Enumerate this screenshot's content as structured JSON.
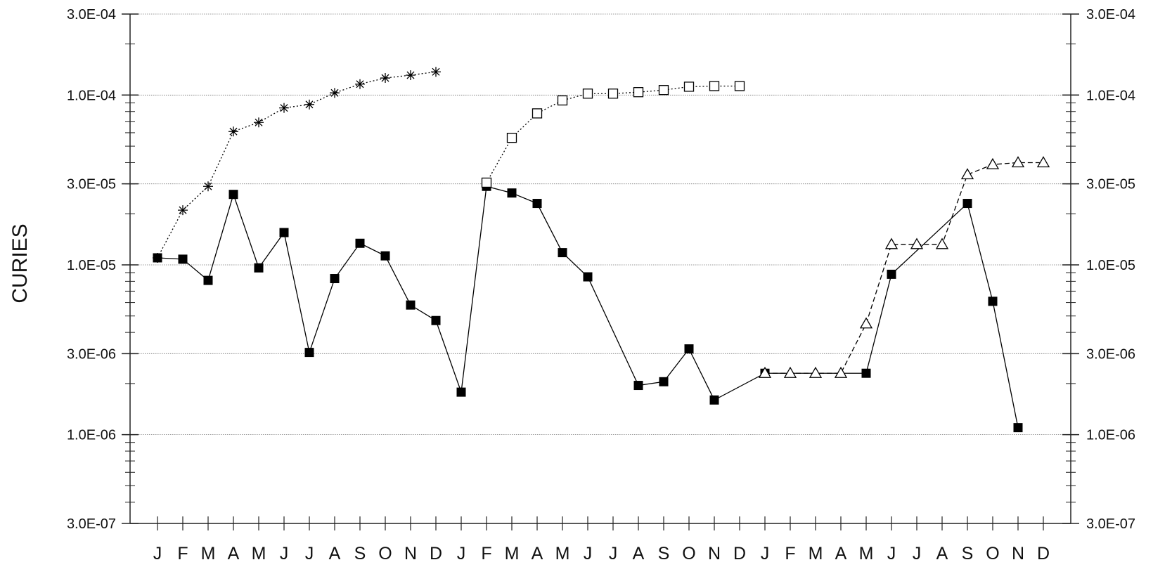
{
  "chart_data": {
    "type": "line",
    "title": "",
    "xlabel": "",
    "ylabel": "CURIES",
    "y_scale": "log",
    "ylim": [
      3e-07,
      0.0003
    ],
    "y_ticks": [
      {
        "value": 0.0003,
        "label": "3.0E-04"
      },
      {
        "value": 0.0001,
        "label": "1.0E-04"
      },
      {
        "value": 3e-05,
        "label": "3.0E-05"
      },
      {
        "value": 1e-05,
        "label": "1.0E-05"
      },
      {
        "value": 3e-06,
        "label": "3.0E-06"
      },
      {
        "value": 1e-06,
        "label": "1.0E-06"
      },
      {
        "value": 3e-07,
        "label": "3.0E-07"
      }
    ],
    "grid": true,
    "categories": [
      "J",
      "F",
      "M",
      "A",
      "M",
      "J",
      "J",
      "A",
      "S",
      "O",
      "N",
      "D",
      "J",
      "F",
      "M",
      "A",
      "M",
      "J",
      "J",
      "A",
      "S",
      "O",
      "N",
      "D",
      "J",
      "F",
      "M",
      "A",
      "M",
      "J",
      "J",
      "A",
      "S",
      "O",
      "N",
      "D"
    ],
    "series": [
      {
        "marker": "filled-square",
        "line": "solid",
        "color": "#000000",
        "values": [
          1.1e-05,
          1.08e-05,
          8.1e-06,
          2.6e-05,
          9.6e-06,
          1.55e-05,
          3.05e-06,
          8.3e-06,
          1.34e-05,
          1.13e-05,
          5.8e-06,
          4.7e-06,
          1.78e-06,
          2.9e-05,
          2.65e-05,
          2.3e-05,
          1.18e-05,
          8.5e-06,
          null,
          1.95e-06,
          2.05e-06,
          3.2e-06,
          1.6e-06,
          null,
          2.3e-06,
          null,
          null,
          null,
          2.3e-06,
          8.8e-06,
          null,
          null,
          2.3e-05,
          6.1e-06,
          1.1e-06,
          null
        ]
      },
      {
        "marker": "asterisk",
        "line": "dotted",
        "color": "#000000",
        "values": [
          1.1e-05,
          2.1e-05,
          2.9e-05,
          6.1e-05,
          6.9e-05,
          8.4e-05,
          8.8e-05,
          0.000103,
          0.000116,
          0.000126,
          0.000131,
          0.000137,
          null,
          null,
          null,
          null,
          null,
          null,
          null,
          null,
          null,
          null,
          null,
          null,
          null,
          null,
          null,
          null,
          null,
          null,
          null,
          null,
          null,
          null,
          null,
          null
        ]
      },
      {
        "marker": "open-square",
        "line": "dotted",
        "color": "#000000",
        "values": [
          null,
          null,
          null,
          null,
          null,
          null,
          null,
          null,
          null,
          null,
          null,
          null,
          null,
          3.05e-05,
          5.6e-05,
          7.8e-05,
          9.3e-05,
          0.000102,
          0.000102,
          0.000104,
          0.000107,
          0.000112,
          0.000113,
          0.000113,
          null,
          null,
          null,
          null,
          null,
          null,
          null,
          null,
          null,
          null,
          null,
          null
        ]
      },
      {
        "marker": "open-triangle",
        "line": "dashed",
        "color": "#000000",
        "values": [
          null,
          null,
          null,
          null,
          null,
          null,
          null,
          null,
          null,
          null,
          null,
          null,
          null,
          null,
          null,
          null,
          null,
          null,
          null,
          null,
          null,
          null,
          null,
          null,
          2.3e-06,
          2.3e-06,
          2.3e-06,
          2.3e-06,
          4.5e-06,
          1.32e-05,
          1.32e-05,
          1.32e-05,
          3.4e-05,
          3.9e-05,
          4e-05,
          4e-05
        ]
      }
    ]
  }
}
